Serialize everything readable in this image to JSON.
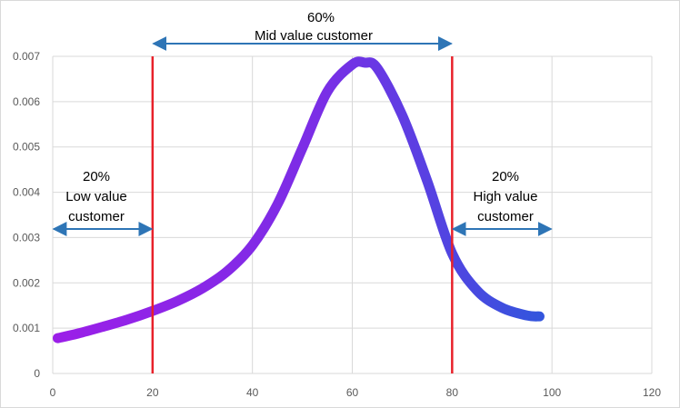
{
  "chart_data": {
    "type": "line",
    "title": "",
    "xlabel": "",
    "ylabel": "",
    "xlim": [
      0,
      120
    ],
    "ylim": [
      0,
      0.007
    ],
    "x_ticks": [
      "0",
      "20",
      "40",
      "60",
      "80",
      "100",
      "120"
    ],
    "y_ticks": [
      "0",
      "0.001",
      "0.002",
      "0.003",
      "0.004",
      "0.005",
      "0.006",
      "0.007"
    ],
    "grid": "vertical and horizontal",
    "colors": {
      "curve_start": "#9b1fe8",
      "curve_end": "#3355dd",
      "thresholds": "#e8212a",
      "arrows": "#2e75b6",
      "grid": "#d9d9d9"
    },
    "series": [
      {
        "x": [
          1,
          5,
          10,
          15,
          20,
          25,
          30,
          35,
          40,
          45,
          50,
          55,
          60,
          62.5,
          65,
          70,
          75,
          80,
          85,
          90,
          95,
          97.5
        ],
        "values": [
          0.00078,
          0.00088,
          0.00103,
          0.00119,
          0.00138,
          0.0016,
          0.00188,
          0.00226,
          0.00283,
          0.00373,
          0.00497,
          0.00622,
          0.00682,
          0.00686,
          0.00674,
          0.0057,
          0.00425,
          0.00265,
          0.00183,
          0.00145,
          0.00128,
          0.00126
        ]
      }
    ],
    "vertical_lines": [
      20,
      80
    ],
    "annotations": {
      "low": {
        "lines": [
          "20%",
          "Low value",
          "customer"
        ],
        "x_range": [
          0,
          20
        ]
      },
      "mid": {
        "lines": [
          "60%",
          "Mid value customer"
        ],
        "x_range": [
          20,
          80
        ]
      },
      "high": {
        "lines": [
          "20%",
          "High value",
          "customer"
        ],
        "x_range": [
          80,
          100
        ]
      }
    }
  }
}
